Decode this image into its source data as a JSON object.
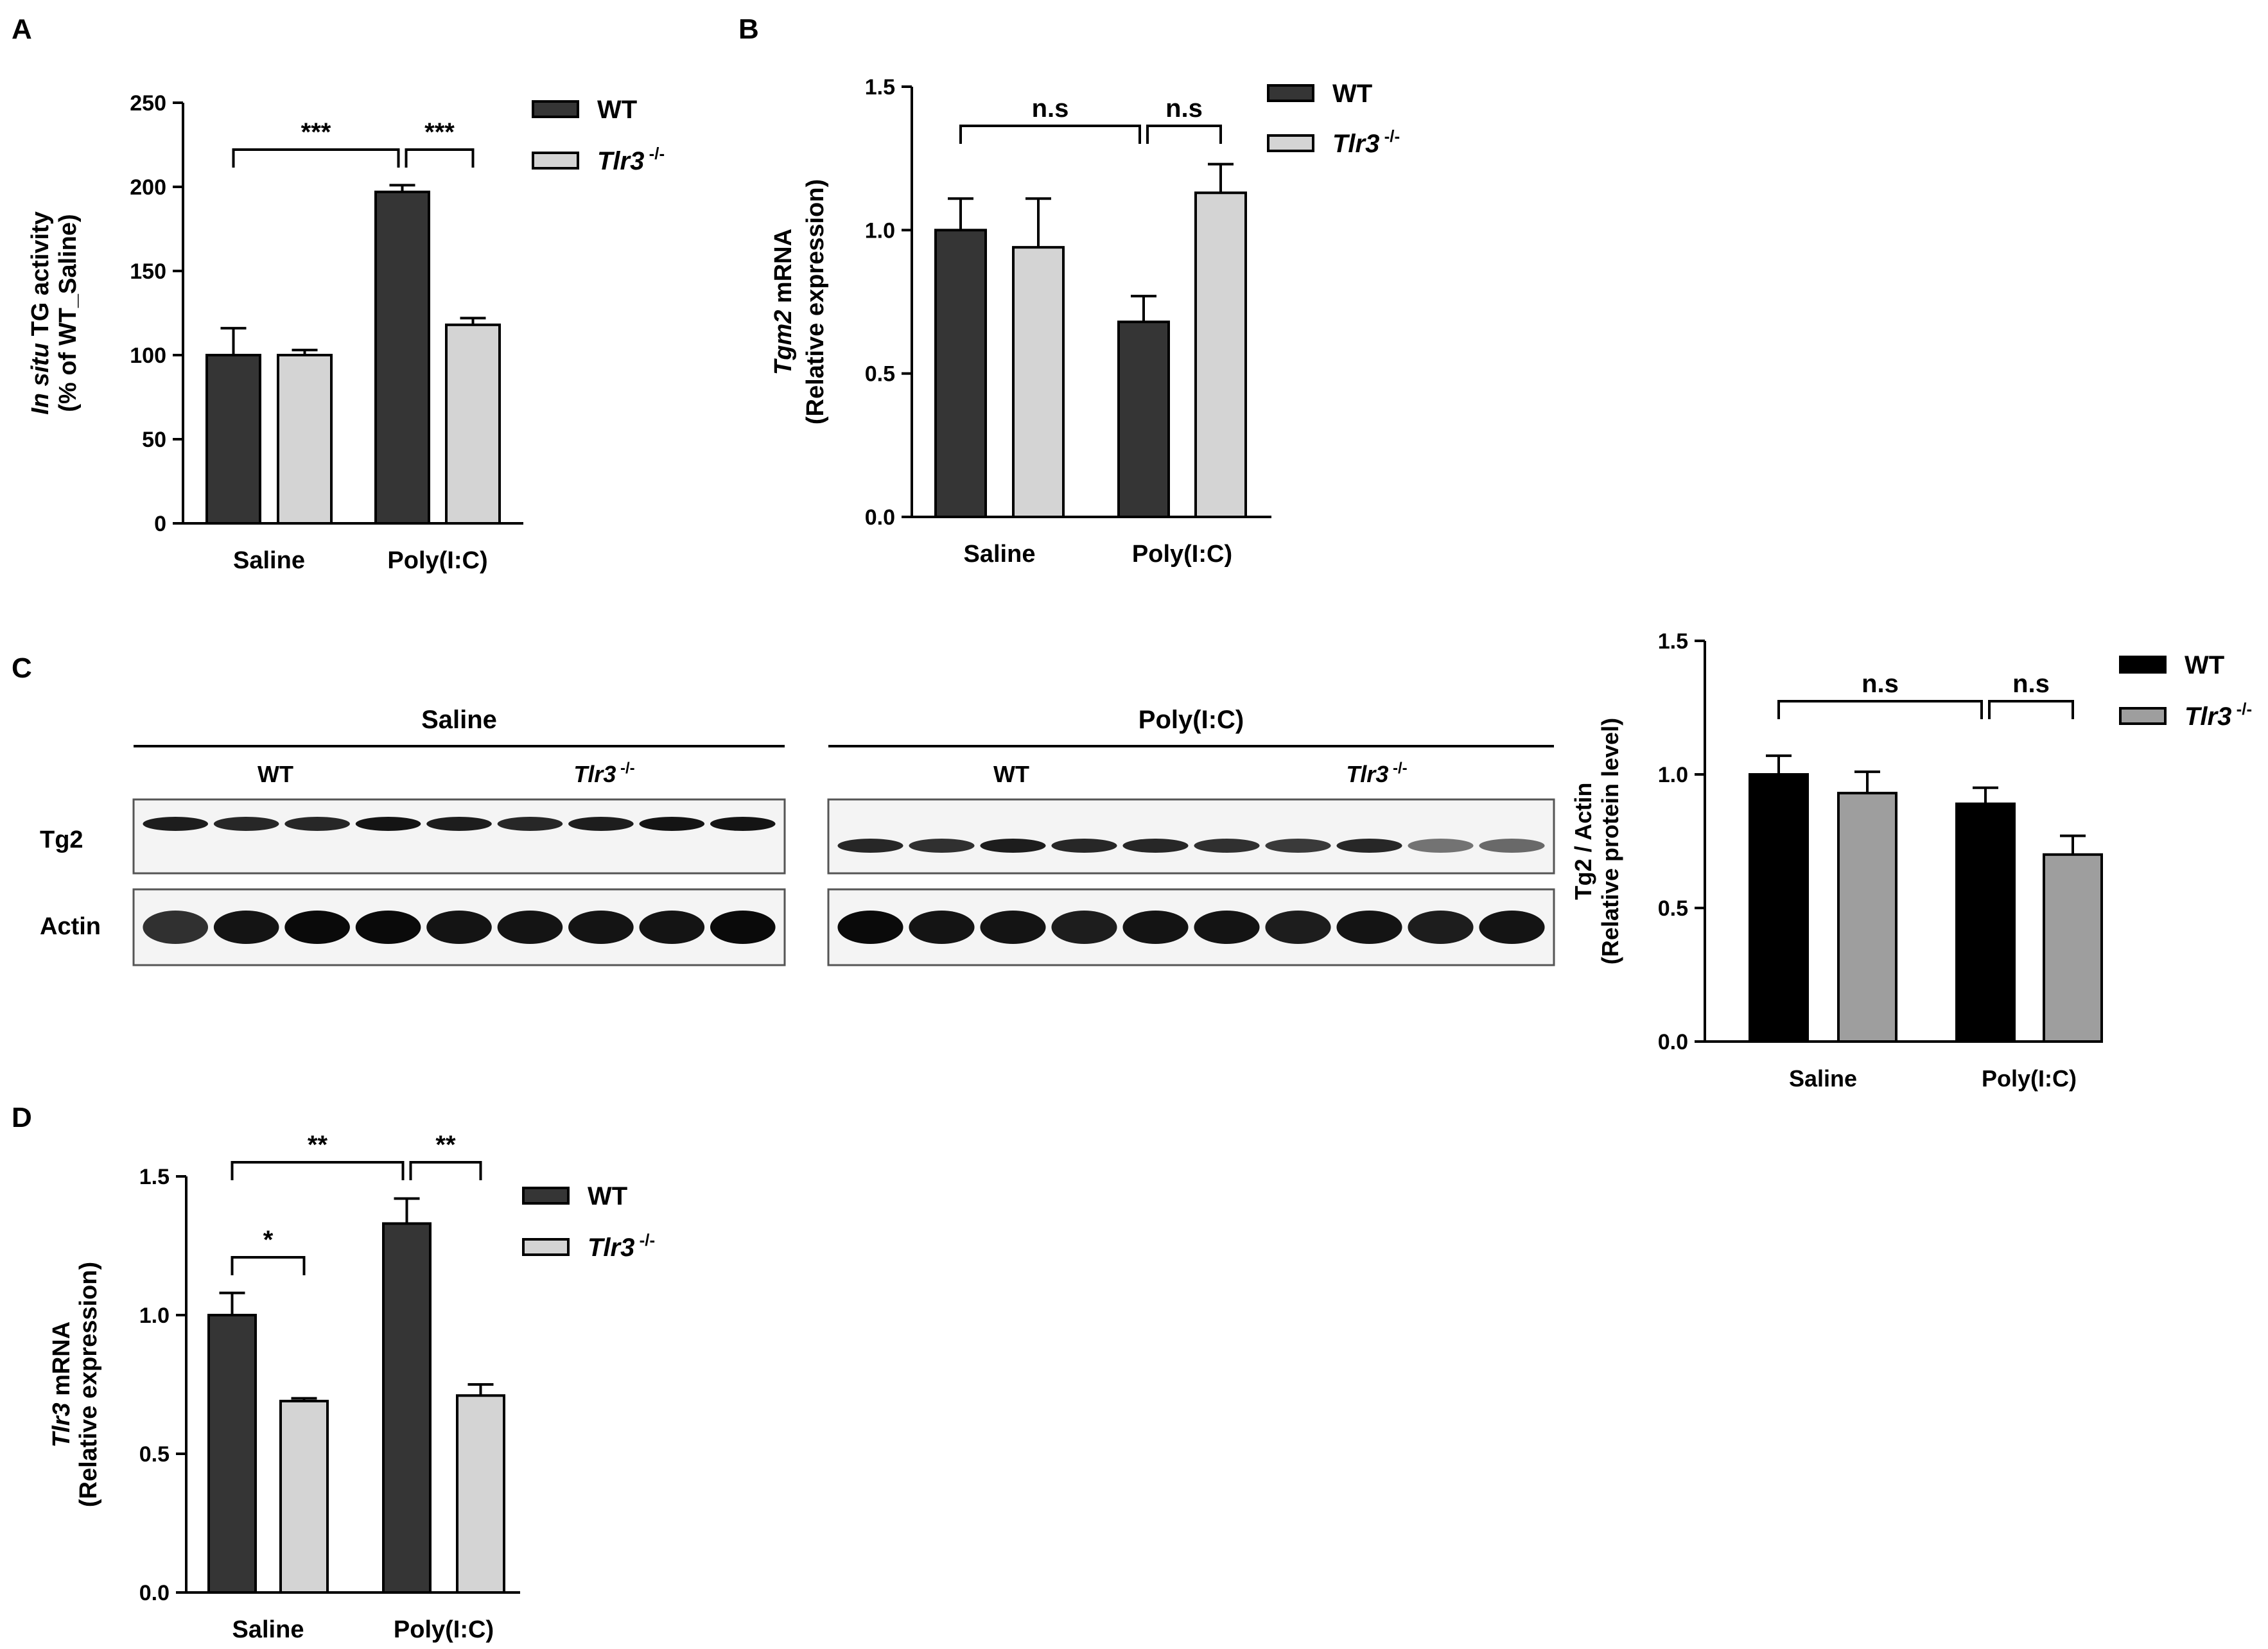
{
  "colors": {
    "wt_dark": "#353535",
    "ko_light": "#d4d4d4",
    "wt_black": "#000000",
    "ko_mid": "#9e9e9e",
    "axis": "#000000"
  },
  "chart_data": [
    {
      "id": "A",
      "panel_label": "A",
      "type": "bar",
      "categories": [
        "Saline",
        "Poly(I:C)"
      ],
      "ylabel_italic": "In situ",
      "ylabel_rest": " TG activity",
      "ylabel_line2": "(% of WT_Saline)",
      "ylim": [
        0,
        250
      ],
      "yticks": [
        "0",
        "50",
        "100",
        "150",
        "200",
        "250"
      ],
      "yticks_values": [
        0,
        50,
        100,
        150,
        200,
        250
      ],
      "series": [
        {
          "name": "WT",
          "values": [
            100,
            197
          ],
          "errors": [
            16,
            4
          ]
        },
        {
          "name_italic": "Tlr3",
          "name_sup": " -/-",
          "values": [
            100,
            118
          ],
          "errors": [
            3,
            4
          ]
        }
      ],
      "brackets": [
        {
          "from": "WT-Saline",
          "to": "WT-Poly(I:C)",
          "label": "***"
        },
        {
          "from": "WT-Poly(I:C)",
          "to": "Tlr3-Poly(I:C)",
          "label": "***"
        }
      ]
    },
    {
      "id": "B",
      "panel_label": "B",
      "type": "bar",
      "categories": [
        "Saline",
        "Poly(I:C)"
      ],
      "ylabel_italic": "Tgm2",
      "ylabel_rest": " mRNA",
      "ylabel_line2": "(Relative expression)",
      "ylim": [
        0,
        1.5
      ],
      "yticks": [
        "0.0",
        "0.5",
        "1.0",
        "1.5"
      ],
      "yticks_values": [
        0,
        0.5,
        1.0,
        1.5
      ],
      "series": [
        {
          "name": "WT",
          "values": [
            1.0,
            0.68
          ],
          "errors": [
            0.11,
            0.09
          ]
        },
        {
          "name_italic": "Tlr3",
          "name_sup": " -/-",
          "values": [
            0.94,
            1.13
          ],
          "errors": [
            0.17,
            0.1
          ]
        }
      ],
      "brackets": [
        {
          "from": "WT-Saline",
          "to": "WT-Poly(I:C)",
          "label": "n.s"
        },
        {
          "from": "WT-Poly(I:C)",
          "to": "Tlr3-Poly(I:C)",
          "label": "n.s"
        }
      ]
    },
    {
      "id": "C",
      "panel_label": "",
      "type": "bar",
      "categories": [
        "Saline",
        "Poly(I:C)"
      ],
      "ylabel_italic": "",
      "ylabel_rest": "Tg2 / Actin",
      "ylabel_line2": "(Relative protein level)",
      "ylim": [
        0,
        1.5
      ],
      "yticks": [
        "0.0",
        "0.5",
        "1.0",
        "1.5"
      ],
      "yticks_values": [
        0,
        0.5,
        1.0,
        1.5
      ],
      "series": [
        {
          "name": "WT",
          "values": [
            1.0,
            0.89
          ],
          "errors": [
            0.07,
            0.06
          ]
        },
        {
          "name_italic": "Tlr3",
          "name_sup": " -/-",
          "values": [
            0.93,
            0.7
          ],
          "errors": [
            0.08,
            0.07
          ]
        }
      ],
      "brackets": [
        {
          "from": "WT-Saline",
          "to": "WT-Poly(I:C)",
          "label": "n.s"
        },
        {
          "from": "WT-Poly(I:C)",
          "to": "Tlr3-Poly(I:C)",
          "label": "n.s"
        }
      ]
    },
    {
      "id": "D",
      "panel_label": "D",
      "type": "bar",
      "categories": [
        "Saline",
        "Poly(I:C)"
      ],
      "ylabel_italic": "Tlr3",
      "ylabel_rest": " mRNA",
      "ylabel_line2": "(Relative expression)",
      "ylim": [
        0,
        1.5
      ],
      "yticks": [
        "0.0",
        "0.5",
        "1.0",
        "1.5"
      ],
      "yticks_values": [
        0,
        0.5,
        1.0,
        1.5
      ],
      "series": [
        {
          "name": "WT",
          "values": [
            1.0,
            1.33
          ],
          "errors": [
            0.08,
            0.09
          ]
        },
        {
          "name_italic": "Tlr3",
          "name_sup": " -/-",
          "values": [
            0.69,
            0.71
          ],
          "errors": [
            0.01,
            0.04
          ]
        }
      ],
      "brackets": [
        {
          "from": "WT-Saline",
          "to": "Tlr3-Saline",
          "label": "*"
        },
        {
          "from": "WT-Saline",
          "to": "WT-Poly(I:C)",
          "label": "**"
        },
        {
          "from": "WT-Poly(I:C)",
          "to": "Tlr3-Poly(I:C)",
          "label": "**"
        }
      ]
    }
  ],
  "blot": {
    "panel_label": "C",
    "groups": [
      {
        "label": "Saline",
        "sub": [
          {
            "label": "WT",
            "italic": false
          },
          {
            "label_italic": "Tlr3",
            "label_sup": " -/-"
          }
        ],
        "lanes_wt": 4,
        "lanes_ko": 5
      },
      {
        "label": "Poly(I:C)",
        "sub": [
          {
            "label": "WT",
            "italic": false
          },
          {
            "label_italic": "Tlr3",
            "label_sup": " -/-"
          }
        ],
        "lanes_wt": 5,
        "lanes_ko": 5
      }
    ],
    "rows": [
      "Tg2",
      "Actin"
    ],
    "tg2_intensity_saline": [
      0.9,
      0.85,
      0.85,
      0.95,
      0.9,
      0.85,
      0.9,
      0.95,
      0.95
    ],
    "tg2_intensity_poly": [
      0.85,
      0.8,
      0.9,
      0.85,
      0.85,
      0.8,
      0.75,
      0.85,
      0.45,
      0.5
    ],
    "actin_intensity_saline": [
      0.8,
      0.95,
      1.0,
      1.0,
      0.95,
      0.95,
      0.95,
      0.95,
      1.0
    ],
    "actin_intensity_poly": [
      1.0,
      0.95,
      0.95,
      0.9,
      0.95,
      0.95,
      0.9,
      0.95,
      0.9,
      0.95
    ]
  }
}
